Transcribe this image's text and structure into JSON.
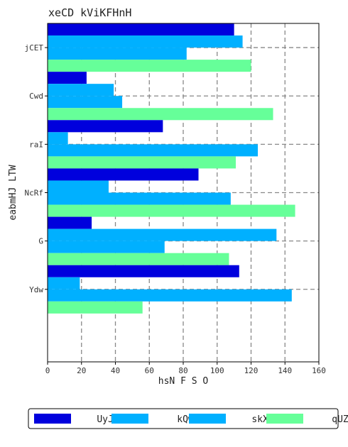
{
  "chart_data": {
    "type": "bar",
    "orientation": "horizontal",
    "title": "xeCD kViKFHnH",
    "xlabel": "hsN  F S O",
    "ylabel": "eabmHJ LTW",
    "categories": [
      "jCET",
      "Cwd",
      "raI",
      "NcRf",
      "G",
      "Ydw"
    ],
    "category_slots": 7,
    "xlim": [
      0,
      160
    ],
    "xticks": [
      0,
      20,
      40,
      60,
      80,
      100,
      120,
      140,
      160
    ],
    "grid": true,
    "legend_position": "bottom",
    "series": [
      {
        "name": "UyJb",
        "color": "#0000dd",
        "values": [
          110,
          23,
          68,
          89,
          26,
          113
        ]
      },
      {
        "name": "kQw",
        "color": "#00b0ff",
        "values": [
          115,
          39,
          12,
          36,
          135,
          19
        ]
      },
      {
        "name": "skXT",
        "color": "#00b0ff",
        "values": [
          82,
          44,
          124,
          108,
          69,
          144
        ]
      },
      {
        "name": "qUZ",
        "color": "#66ff99",
        "values": [
          120,
          133,
          111,
          146,
          107,
          56
        ]
      }
    ]
  }
}
